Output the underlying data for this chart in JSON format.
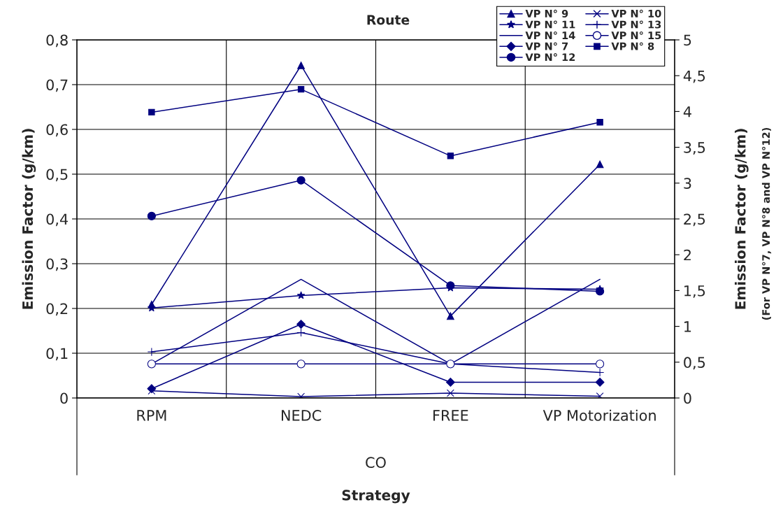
{
  "chart_data": {
    "type": "line",
    "title": "Route",
    "xlabel": "Strategy",
    "ylabel": "Emission Factor (g/km)",
    "y2label": "Emission Factor (g/km)\n(For VP N°7, VP N°8 and VP N°12)",
    "annotations": [
      "CO"
    ],
    "categories": [
      "RPM",
      "NEDC",
      "FREE",
      "VP Motorization"
    ],
    "ylim": [
      0,
      0.8
    ],
    "yticks": [
      0,
      {
        "value": 0.1,
        "label": "0,1"
      },
      {
        "value": 0.2,
        "label": "0,2"
      },
      {
        "value": 0.3,
        "label": "0,3"
      },
      {
        "value": 0.4,
        "label": "0,4"
      },
      {
        "value": 0.5,
        "label": "0,5"
      },
      {
        "value": 0.6,
        "label": "0,6"
      },
      {
        "value": 0.7,
        "label": "0,7"
      },
      {
        "value": 0.8,
        "label": "0,8"
      }
    ],
    "y2lim": [
      0,
      5
    ],
    "y2ticks": [
      0,
      {
        "value": 0.5,
        "label": "0,5"
      },
      1,
      {
        "value": 1.5,
        "label": "1,5"
      },
      2,
      {
        "value": 2.5,
        "label": "2,5"
      },
      3,
      {
        "value": 3.5,
        "label": "3,5"
      },
      4,
      {
        "value": 4.5,
        "label": "4,5"
      },
      5
    ],
    "grid": true,
    "legend": "top right",
    "series": [
      {
        "name": "VP N° 9",
        "color": "#000080",
        "marker": "triangle",
        "values": [
          0.209,
          0.743,
          0.183,
          0.522
        ]
      },
      {
        "name": "VP N° 10",
        "color": "#000080",
        "marker": "cross",
        "values": [
          0.016,
          0.003,
          0.011,
          0.004
        ]
      },
      {
        "name": "VP N° 11",
        "color": "#000080",
        "marker": "star",
        "values": [
          0.201,
          0.229,
          0.246,
          0.243
        ]
      },
      {
        "name": "VP N° 13",
        "color": "#000080",
        "marker": "plus",
        "values": [
          0.103,
          0.146,
          0.076,
          0.057
        ]
      },
      {
        "name": "VP N° 14",
        "color": "#000080",
        "values": [
          0.076,
          0.265,
          0.076,
          0.265
        ]
      },
      {
        "name": "VP N° 15",
        "color": "#000080",
        "marker": "open circle",
        "values": [
          0.076,
          0.076,
          0.076,
          0.076
        ]
      },
      {
        "name": "VP N° 7",
        "color": "#000080",
        "marker": "diamond",
        "axis": "y2",
        "values": [
          0.13,
          1.03,
          0.22,
          0.22
        ]
      },
      {
        "name": "VP N° 8",
        "color": "#000080",
        "marker": "square",
        "axis": "y2",
        "values": [
          3.99,
          4.31,
          3.38,
          3.85
        ]
      },
      {
        "name": "VP N° 12",
        "color": "#000080",
        "marker": "circle",
        "axis": "y2",
        "values": [
          2.54,
          3.04,
          1.57,
          1.49
        ]
      }
    ]
  }
}
